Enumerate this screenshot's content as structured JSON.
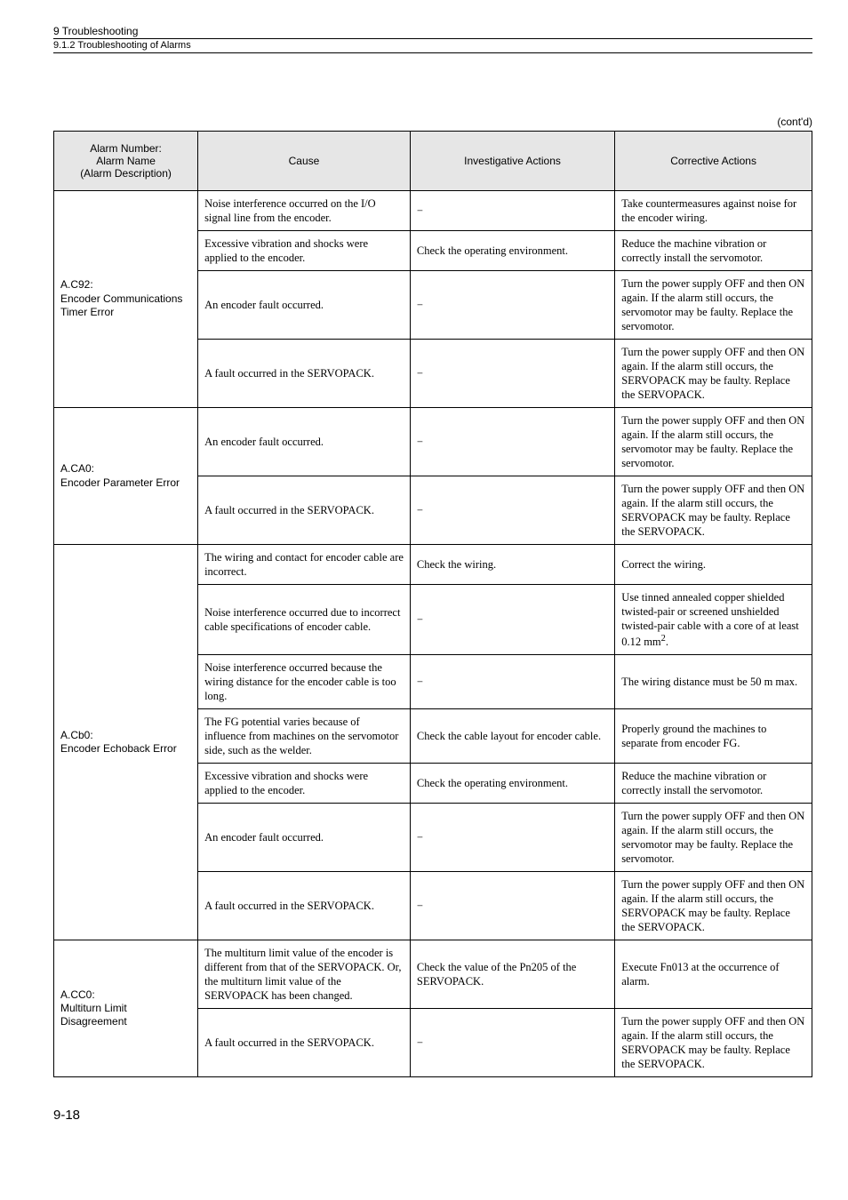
{
  "header": {
    "section": "9  Troubleshooting",
    "subsection": "9.1.2  Troubleshooting of Alarms"
  },
  "contd": "(cont'd)",
  "columns": {
    "c1a": "Alarm Number:",
    "c1b": "Alarm Name",
    "c1c": "(Alarm Description)",
    "c2": "Cause",
    "c3": "Investigative Actions",
    "c4": "Corrective Actions"
  },
  "ac92": {
    "head1": "A.C92:",
    "head2": "Encoder Communications Timer Error",
    "r1c2": "Noise interference occurred on the I/O signal line from the encoder.",
    "r1c3": "−",
    "r1c4": "Take countermeasures against noise for the encoder wiring.",
    "r2c2": "Excessive vibration and shocks were applied to the encoder.",
    "r2c3": "Check the operating environment.",
    "r2c4": "Reduce the machine vibration or correctly install the servomotor.",
    "r3c2": "An encoder fault occurred.",
    "r3c3": "−",
    "r3c4": "Turn the power supply OFF and then ON again. If the alarm still occurs, the servomotor may be faulty. Replace the servomotor.",
    "r4c2": "A fault occurred in the SERVOPACK.",
    "r4c3": "−",
    "r4c4": "Turn the power supply OFF and then ON again. If the alarm still occurs, the SERVOPACK may be faulty. Replace the SERVOPACK."
  },
  "aca0": {
    "head1": "A.CA0:",
    "head2": "Encoder Parameter Error",
    "r1c2": "An encoder fault occurred.",
    "r1c3": "−",
    "r1c4": "Turn the power supply OFF and then ON again. If the alarm still occurs, the servomotor may be faulty. Replace the servomotor.",
    "r2c2": "A fault occurred in the SERVOPACK.",
    "r2c3": "−",
    "r2c4": "Turn the power supply OFF and then ON again. If the alarm still occurs, the SERVOPACK may be faulty. Replace the SERVOPACK."
  },
  "acb0": {
    "head1": "A.Cb0:",
    "head2": "Encoder Echoback Error",
    "r1c2": "The wiring and contact for encoder cable are incorrect.",
    "r1c3": "Check the wiring.",
    "r1c4": "Correct the wiring.",
    "r2c2": "Noise interference occurred due to incorrect cable specifications of encoder cable.",
    "r2c3": "−",
    "r2c4_pre": "Use tinned annealed copper shielded twisted-pair or screened unshielded twisted-pair cable with a core of at least 0.12 mm",
    "r2c4_post": ".",
    "r3c2": "Noise interference occurred because the wiring distance for the encoder cable is too long.",
    "r3c3": "−",
    "r3c4": "The wiring distance must be 50 m max.",
    "r4c2": "The FG potential varies because of influence from machines on the servomotor side, such as the welder.",
    "r4c3": "Check the cable layout for encoder cable.",
    "r4c4": "Properly ground the machines to separate from encoder FG.",
    "r5c2": "Excessive vibration and shocks were applied to the encoder.",
    "r5c3": "Check the operating environment.",
    "r5c4": "Reduce the machine vibration or correctly install the servomotor.",
    "r6c2": "An encoder fault occurred.",
    "r6c3": "−",
    "r6c4": "Turn the power supply OFF and then ON again. If the alarm still occurs, the servomotor may be faulty. Replace the servomotor.",
    "r7c2": "A fault occurred in the SERVOPACK.",
    "r7c3": "−",
    "r7c4": "Turn the power supply OFF and then ON again. If the alarm still occurs, the SERVOPACK may be faulty. Replace the SERVOPACK."
  },
  "acc0": {
    "head1": "A.CC0:",
    "head2": "Multiturn Limit Disagreement",
    "r1c2": "The multiturn limit value of the encoder is different from that of the SERVOPACK. Or, the multiturn limit value of the SERVOPACK has been changed.",
    "r1c3": "Check the value of the Pn205 of the SERVOPACK.",
    "r1c4": "Execute Fn013 at the occurrence of alarm.",
    "r2c2": "A fault occurred in the SERVOPACK.",
    "r2c3": "−",
    "r2c4": "Turn the power supply OFF and then ON again. If the alarm still occurs, the SERVOPACK may be faulty. Replace the SERVOPACK."
  },
  "pagenum": "9-18"
}
